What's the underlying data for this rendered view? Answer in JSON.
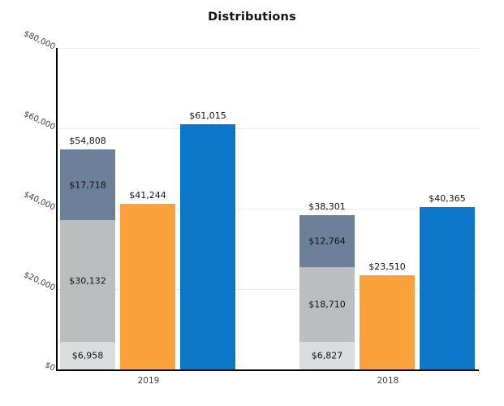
{
  "chart_data": {
    "type": "bar",
    "title": "Distributions",
    "xlabel": "",
    "ylabel": "",
    "ylim": [
      0,
      80000
    ],
    "grid": true,
    "legend": false,
    "categories": [
      "2019",
      "2018"
    ],
    "y_ticks": [
      {
        "value": 0,
        "label": "$0"
      },
      {
        "value": 20000,
        "label": "$20,000"
      },
      {
        "value": 40000,
        "label": "$40,000"
      },
      {
        "value": 60000,
        "label": "$60,000"
      },
      {
        "value": 80000,
        "label": "$80,000"
      }
    ],
    "groups": [
      {
        "category": "2019",
        "bars": [
          {
            "kind": "stacked",
            "name": "stacked-bar",
            "total": 54808,
            "total_label": "$54,808",
            "segments": [
              {
                "name": "segment-bottom",
                "value": 6958,
                "label": "$6,958",
                "color": "#dbdcdd"
              },
              {
                "name": "segment-middle",
                "value": 30132,
                "label": "$30,132",
                "color": "#bcbdbe"
              },
              {
                "name": "segment-top",
                "value": 17718,
                "label": "$17,718",
                "color": "#6d8099"
              }
            ]
          },
          {
            "kind": "single",
            "name": "orange-bar",
            "value": 41244,
            "label": "$41,244",
            "color": "#f9a13c"
          },
          {
            "kind": "single",
            "name": "blue-bar",
            "value": 61015,
            "label": "$61,015",
            "color": "#0c76c8"
          }
        ]
      },
      {
        "category": "2018",
        "bars": [
          {
            "kind": "stacked",
            "name": "stacked-bar",
            "total": 38301,
            "total_label": "$38,301",
            "segments": [
              {
                "name": "segment-bottom",
                "value": 6827,
                "label": "$6,827",
                "color": "#dbdcdd"
              },
              {
                "name": "segment-middle",
                "value": 18710,
                "label": "$18,710",
                "color": "#bcbdbe"
              },
              {
                "name": "segment-top",
                "value": 12764,
                "label": "$12,764",
                "color": "#6d8099"
              }
            ]
          },
          {
            "kind": "single",
            "name": "orange-bar",
            "value": 23510,
            "label": "$23,510",
            "color": "#f9a13c"
          },
          {
            "kind": "single",
            "name": "blue-bar",
            "value": 40365,
            "label": "$40,365",
            "color": "#0c76c8"
          }
        ]
      }
    ],
    "colors": {
      "stack_bottom": "#dbdcdd",
      "stack_middle": "#bcbdbe",
      "stack_top": "#6d8099",
      "orange": "#f9a13c",
      "blue": "#0c76c8",
      "gridline": "#ebebeb",
      "axis": "#000000"
    }
  }
}
